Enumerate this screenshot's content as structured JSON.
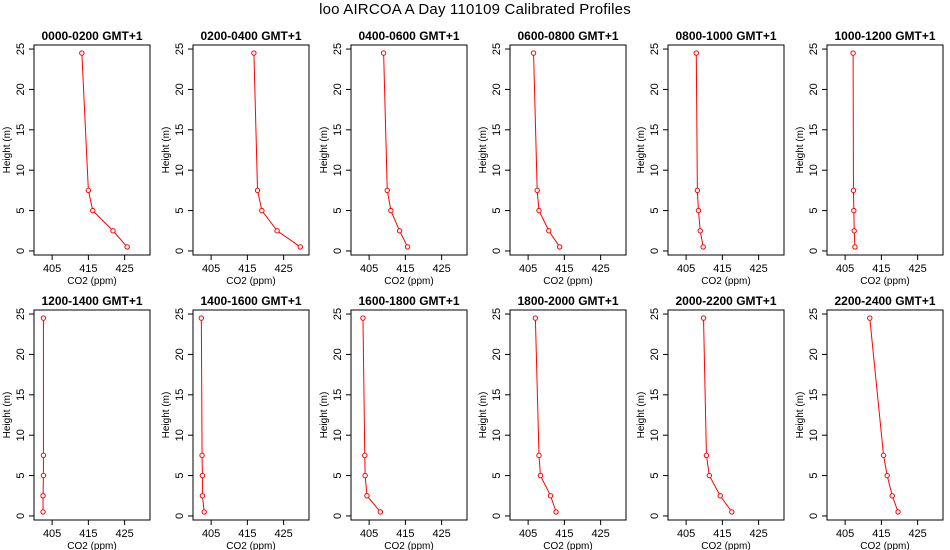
{
  "page_title": "loo AIRCOA A  Day 110109  Calibrated Profiles",
  "colors": {
    "series": "#ff0000",
    "axis": "#000000",
    "background": "#ffffff"
  },
  "axes": {
    "xlabel": "CO2 (ppm)",
    "ylabel": "Height (m)",
    "xlim": [
      400,
      432
    ],
    "ylim": [
      -0.5,
      25.5
    ],
    "xticks": [
      405,
      415,
      425
    ],
    "yticks": [
      0,
      5,
      10,
      15,
      20,
      25
    ]
  },
  "chart_data": [
    {
      "type": "line",
      "title": "0000-0200 GMT+1",
      "x": [
        425.7,
        421.8,
        416.2,
        415.0,
        413.2
      ],
      "y": [
        0.5,
        2.5,
        5.0,
        7.5,
        24.5
      ]
    },
    {
      "type": "line",
      "title": "0200-0400 GMT+1",
      "x": [
        429.6,
        423.2,
        419.0,
        417.8,
        416.8
      ],
      "y": [
        0.5,
        2.5,
        5.0,
        7.5,
        24.5
      ]
    },
    {
      "type": "line",
      "title": "0400-0600 GMT+1",
      "x": [
        415.6,
        413.4,
        411.0,
        410.0,
        409.0
      ],
      "y": [
        0.5,
        2.5,
        5.0,
        7.5,
        24.5
      ]
    },
    {
      "type": "line",
      "title": "0600-0800 GMT+1",
      "x": [
        413.7,
        410.7,
        408.0,
        407.5,
        406.5
      ],
      "y": [
        0.5,
        2.5,
        5.0,
        7.5,
        24.5
      ]
    },
    {
      "type": "line",
      "title": "0800-1000 GMT+1",
      "x": [
        409.7,
        408.9,
        408.4,
        408.1,
        407.8
      ],
      "y": [
        0.5,
        2.5,
        5.0,
        7.5,
        24.5
      ]
    },
    {
      "type": "line",
      "title": "1000-1200 GMT+1",
      "x": [
        407.7,
        407.5,
        407.4,
        407.3,
        407.2
      ],
      "y": [
        0.5,
        2.5,
        5.0,
        7.5,
        24.5
      ]
    },
    {
      "type": "line",
      "title": "1200-1400 GMT+1",
      "x": [
        402.5,
        402.5,
        402.6,
        402.6,
        402.6
      ],
      "y": [
        0.5,
        2.5,
        5.0,
        7.5,
        24.5
      ]
    },
    {
      "type": "line",
      "title": "1400-1600 GMT+1",
      "x": [
        403.1,
        402.6,
        402.6,
        402.5,
        402.3
      ],
      "y": [
        0.5,
        2.5,
        5.0,
        7.5,
        24.5
      ]
    },
    {
      "type": "line",
      "title": "1600-1800 GMT+1",
      "x": [
        408.1,
        404.4,
        403.9,
        403.8,
        403.3
      ],
      "y": [
        0.5,
        2.5,
        5.0,
        7.5,
        24.5
      ]
    },
    {
      "type": "line",
      "title": "1800-2000 GMT+1",
      "x": [
        412.7,
        411.2,
        408.4,
        408.0,
        407.0
      ],
      "y": [
        0.5,
        2.5,
        5.0,
        7.5,
        24.5
      ]
    },
    {
      "type": "line",
      "title": "2000-2200 GMT+1",
      "x": [
        417.6,
        414.4,
        411.4,
        410.6,
        409.8
      ],
      "y": [
        0.5,
        2.5,
        5.0,
        7.5,
        24.5
      ]
    },
    {
      "type": "line",
      "title": "2200-2400 GMT+1",
      "x": [
        419.6,
        418.0,
        416.6,
        415.6,
        411.8
      ],
      "y": [
        0.5,
        2.5,
        5.0,
        7.5,
        24.5
      ]
    }
  ]
}
